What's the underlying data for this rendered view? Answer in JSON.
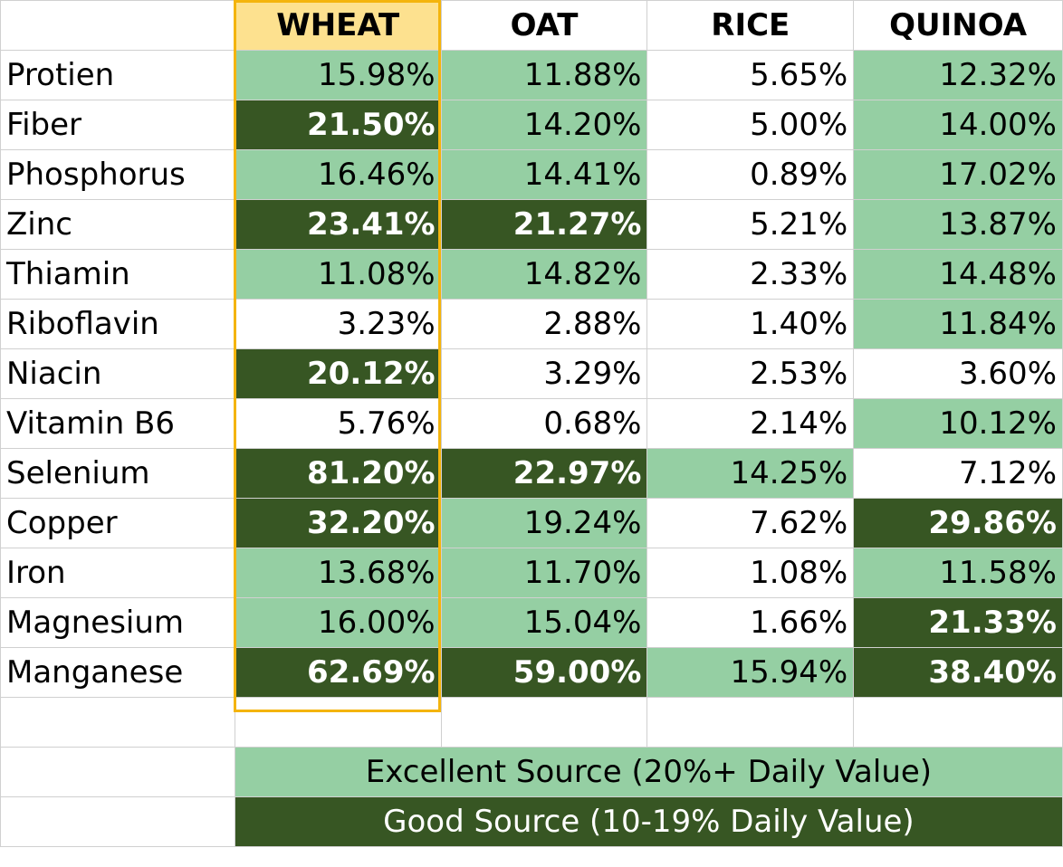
{
  "columns": [
    "WHEAT",
    "OAT",
    "RICE",
    "QUINOA"
  ],
  "rows": [
    {
      "label": "Protien",
      "values": [
        "15.98%",
        "11.88%",
        "5.65%",
        "12.32%"
      ],
      "levels": [
        "exc",
        "exc",
        "",
        "exc"
      ]
    },
    {
      "label": "Fiber",
      "values": [
        "21.50%",
        "14.20%",
        "5.00%",
        "14.00%"
      ],
      "levels": [
        "good",
        "exc",
        "",
        "exc"
      ]
    },
    {
      "label": "Phosphorus",
      "values": [
        "16.46%",
        "14.41%",
        "0.89%",
        "17.02%"
      ],
      "levels": [
        "exc",
        "exc",
        "",
        "exc"
      ]
    },
    {
      "label": "Zinc",
      "values": [
        "23.41%",
        "21.27%",
        "5.21%",
        "13.87%"
      ],
      "levels": [
        "good",
        "good",
        "",
        "exc"
      ]
    },
    {
      "label": "Thiamin",
      "values": [
        "11.08%",
        "14.82%",
        "2.33%",
        "14.48%"
      ],
      "levels": [
        "exc",
        "exc",
        "",
        "exc"
      ]
    },
    {
      "label": "Riboflavin",
      "values": [
        "3.23%",
        "2.88%",
        "1.40%",
        "11.84%"
      ],
      "levels": [
        "",
        "",
        "",
        "exc"
      ]
    },
    {
      "label": "Niacin",
      "values": [
        "20.12%",
        "3.29%",
        "2.53%",
        "3.60%"
      ],
      "levels": [
        "good",
        "",
        "",
        ""
      ]
    },
    {
      "label": "Vitamin B6",
      "values": [
        "5.76%",
        "0.68%",
        "2.14%",
        "10.12%"
      ],
      "levels": [
        "",
        "",
        "",
        "exc"
      ]
    },
    {
      "label": "Selenium",
      "values": [
        "81.20%",
        "22.97%",
        "14.25%",
        "7.12%"
      ],
      "levels": [
        "good",
        "good",
        "exc",
        ""
      ]
    },
    {
      "label": "Copper",
      "values": [
        "32.20%",
        "19.24%",
        "7.62%",
        "29.86%"
      ],
      "levels": [
        "good",
        "exc",
        "",
        "good"
      ]
    },
    {
      "label": "Iron",
      "values": [
        "13.68%",
        "11.70%",
        "1.08%",
        "11.58%"
      ],
      "levels": [
        "exc",
        "exc",
        "",
        "exc"
      ]
    },
    {
      "label": "Magnesium",
      "values": [
        "16.00%",
        "15.04%",
        "1.66%",
        "21.33%"
      ],
      "levels": [
        "exc",
        "exc",
        "",
        "good"
      ]
    },
    {
      "label": "Manganese",
      "values": [
        "62.69%",
        "59.00%",
        "15.94%",
        "38.40%"
      ],
      "levels": [
        "good",
        "good",
        "exc",
        "good"
      ]
    }
  ],
  "legend": {
    "excellent": "Excellent Source (20%+ Daily Value)",
    "good": "Good Source (10-19% Daily Value)"
  },
  "colors": {
    "excellent_fill": "#95cfa3",
    "good_fill": "#375623",
    "header_highlight": "#fde18f",
    "column_outline": "#f4b40c"
  }
}
